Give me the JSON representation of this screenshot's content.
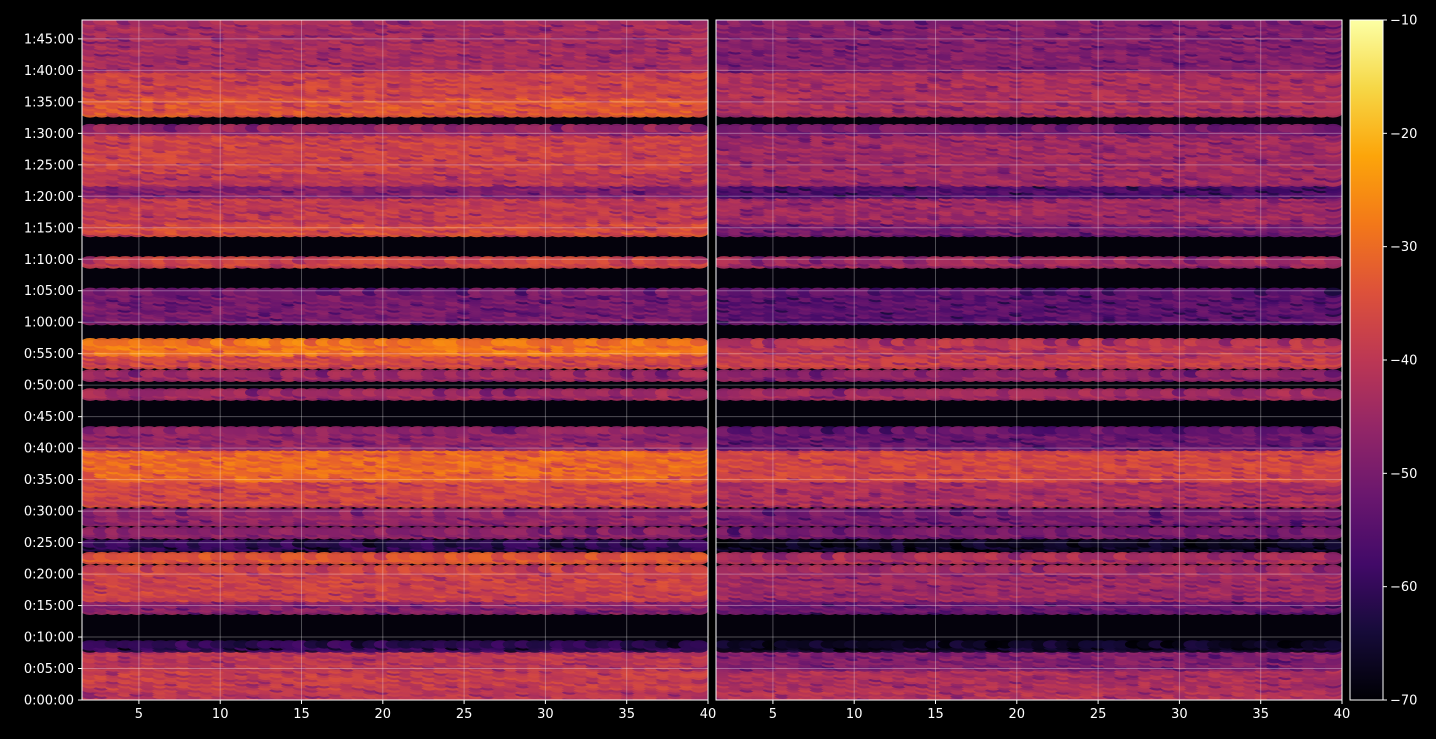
{
  "chart_data": {
    "type": "heatmap",
    "title": "",
    "xlabel": "",
    "ylabel": "",
    "colormap": "inferno",
    "background": "#000000",
    "panels": [
      {
        "xlim": [
          1.5,
          40
        ],
        "x_ticks": [
          5,
          10,
          15,
          20,
          25,
          30,
          35,
          40
        ],
        "x_tick_labels": [
          "5",
          "10",
          "15",
          "20",
          "25",
          "30",
          "35",
          "40"
        ]
      },
      {
        "xlim": [
          1.5,
          40
        ],
        "x_ticks": [
          5,
          10,
          15,
          20,
          25,
          30,
          35,
          40
        ],
        "x_tick_labels": [
          "5",
          "10",
          "15",
          "20",
          "25",
          "30",
          "35",
          "40"
        ]
      }
    ],
    "ylim_seconds": [
      0,
      6480
    ],
    "y_ticks_seconds": [
      0,
      300,
      600,
      900,
      1200,
      1500,
      1800,
      2100,
      2400,
      2700,
      3000,
      3300,
      3600,
      3900,
      4200,
      4500,
      4800,
      5100,
      5400,
      5700,
      6000,
      6300
    ],
    "y_tick_labels": [
      "0:00:00",
      "0:05:00",
      "0:10:00",
      "0:15:00",
      "0:20:00",
      "0:25:00",
      "0:30:00",
      "0:35:00",
      "0:40:00",
      "0:45:00",
      "0:50:00",
      "0:55:00",
      "1:00:00",
      "1:05:00",
      "1:10:00",
      "1:15:00",
      "1:20:00",
      "1:25:00",
      "1:30:00",
      "1:35:00",
      "1:40:00",
      "1:45:00"
    ],
    "colorbar": {
      "min": -70,
      "max": -10,
      "ticks": [
        -70,
        -60,
        -50,
        -40,
        -30,
        -20,
        -10
      ],
      "tick_labels": [
        "−70",
        "−60",
        "−50",
        "−40",
        "−30",
        "−20",
        "−10"
      ]
    },
    "grid": true,
    "level_bands": [
      {
        "t_start": 0,
        "t_end": 120,
        "level_left": -40,
        "level_right": -41
      },
      {
        "t_start": 120,
        "t_end": 300,
        "level_left": -38,
        "level_right": -42
      },
      {
        "t_start": 300,
        "t_end": 480,
        "level_left": -40,
        "level_right": -48
      },
      {
        "t_start": 480,
        "t_end": 540,
        "level_left": -60,
        "level_right": -66
      },
      {
        "t_start": 840,
        "t_end": 960,
        "level_left": -47,
        "level_right": -52
      },
      {
        "t_start": 960,
        "t_end": 1260,
        "level_left": -37,
        "level_right": -44
      },
      {
        "t_start": 1320,
        "t_end": 1380,
        "level_left": -34,
        "level_right": -42
      },
      {
        "t_start": 1440,
        "t_end": 1500,
        "level_left": -60,
        "level_right": -66
      },
      {
        "t_start": 1560,
        "t_end": 1620,
        "level_left": -47,
        "level_right": -50
      },
      {
        "t_start": 1680,
        "t_end": 1800,
        "level_left": -46,
        "level_right": -50
      },
      {
        "t_start": 1860,
        "t_end": 2100,
        "level_left": -36,
        "level_right": -42
      },
      {
        "t_start": 2100,
        "t_end": 2400,
        "level_left": -30,
        "level_right": -36
      },
      {
        "t_start": 2400,
        "t_end": 2580,
        "level_left": -46,
        "level_right": -52
      },
      {
        "t_start": 2880,
        "t_end": 2940,
        "level_left": -44,
        "level_right": -44
      },
      {
        "t_start": 3060,
        "t_end": 3120,
        "level_left": -44,
        "level_right": -46
      },
      {
        "t_start": 3180,
        "t_end": 3300,
        "level_left": -36,
        "level_right": -38
      },
      {
        "t_start": 3300,
        "t_end": 3420,
        "level_left": -28,
        "level_right": -40
      },
      {
        "t_start": 3600,
        "t_end": 3900,
        "level_left": -50,
        "level_right": -54
      },
      {
        "t_start": 4140,
        "t_end": 4200,
        "level_left": -37,
        "level_right": -44
      },
      {
        "t_start": 4440,
        "t_end": 4560,
        "level_left": -35,
        "level_right": -50
      },
      {
        "t_start": 4560,
        "t_end": 4800,
        "level_left": -39,
        "level_right": -44
      },
      {
        "t_start": 4800,
        "t_end": 4920,
        "level_left": -48,
        "level_right": -56
      },
      {
        "t_start": 4920,
        "t_end": 5040,
        "level_left": -40,
        "level_right": -44
      },
      {
        "t_start": 5040,
        "t_end": 5400,
        "level_left": -37,
        "level_right": -44
      },
      {
        "t_start": 5400,
        "t_end": 5460,
        "level_left": -45,
        "level_right": -50
      },
      {
        "t_start": 5580,
        "t_end": 5760,
        "level_left": -33,
        "level_right": -42
      },
      {
        "t_start": 5760,
        "t_end": 6000,
        "level_left": -37,
        "level_right": -42
      },
      {
        "t_start": 6000,
        "t_end": 6480,
        "level_left": -43,
        "level_right": -48
      }
    ]
  }
}
